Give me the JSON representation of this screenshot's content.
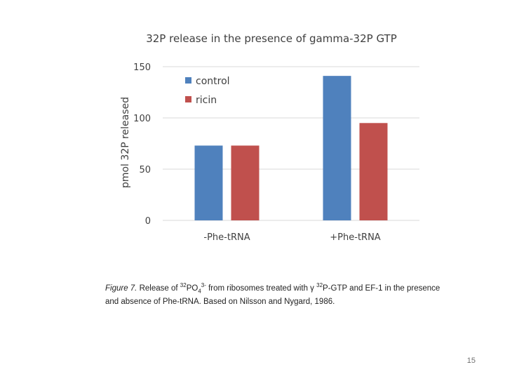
{
  "chart_data": {
    "type": "bar",
    "title": "32P release in the presence of gamma-32P GTP",
    "ylabel": "pmol 32P released",
    "xlabel": "",
    "ylim": [
      0,
      150
    ],
    "yticks": [
      0,
      50,
      100,
      150
    ],
    "ytick_labels": [
      "0",
      "50",
      "100",
      "150"
    ],
    "categories": [
      "-Phe-tRNA",
      "+Phe-tRNA"
    ],
    "series": [
      {
        "name": "control",
        "color": "#4f81bd",
        "values": [
          73,
          141
        ]
      },
      {
        "name": "ricin",
        "color": "#c0504d",
        "values": [
          73,
          95
        ]
      }
    ],
    "grid": true,
    "legend_position": "top-left"
  },
  "caption": {
    "figure_label": "Figure 7.",
    "text_before_formula": "Release of",
    "formula_isotope": "32",
    "formula_body": "PO",
    "formula_subscript": "4",
    "formula_charge": "3-",
    "text_mid": "from ribosomes treated with γ",
    "gtp_isotope": "32",
    "text_after": "P-GTP and EF-1 in the presence and absence of Phe-tRNA. Based on Nilsson and Nygard, 1986."
  },
  "page_number": "15"
}
